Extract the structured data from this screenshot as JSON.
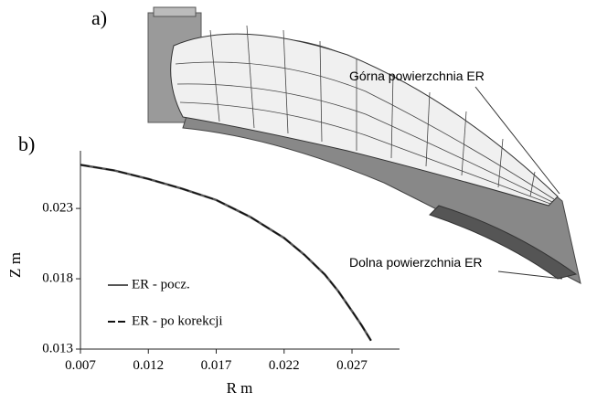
{
  "panel_a": {
    "label": "a)",
    "upper_label": "Górna powierzchnia ER",
    "lower_label": "Dolna powierzchnia ER"
  },
  "chart_data": {
    "type": "line",
    "panel_label": "b)",
    "x_label": "R m",
    "y_label": "Z m",
    "x": [
      0.007,
      0.0095,
      0.012,
      0.0145,
      0.017,
      0.0195,
      0.022,
      0.0235,
      0.025,
      0.026,
      0.027,
      0.0277,
      0.0284
    ],
    "series": [
      {
        "name": "ER - pocz.",
        "color": "#555555",
        "dash": false,
        "values": [
          0.0261,
          0.0257,
          0.0251,
          0.0244,
          0.0236,
          0.0224,
          0.0209,
          0.0197,
          0.0183,
          0.0171,
          0.0157,
          0.0147,
          0.0136
        ]
      },
      {
        "name": "ER - po korekcji",
        "color": "#111111",
        "dash": true,
        "values": [
          0.0261,
          0.0257,
          0.0251,
          0.0244,
          0.0236,
          0.0224,
          0.0209,
          0.0197,
          0.0183,
          0.0171,
          0.0157,
          0.0147,
          0.0136
        ]
      }
    ],
    "xlim": [
      0.007,
      0.0305
    ],
    "ylim": [
      0.013,
      0.0271
    ],
    "xticks": [
      0.007,
      0.012,
      0.017,
      0.022,
      0.027
    ],
    "yticks": [
      0.013,
      0.018,
      0.023
    ],
    "legend": "lower-left"
  }
}
